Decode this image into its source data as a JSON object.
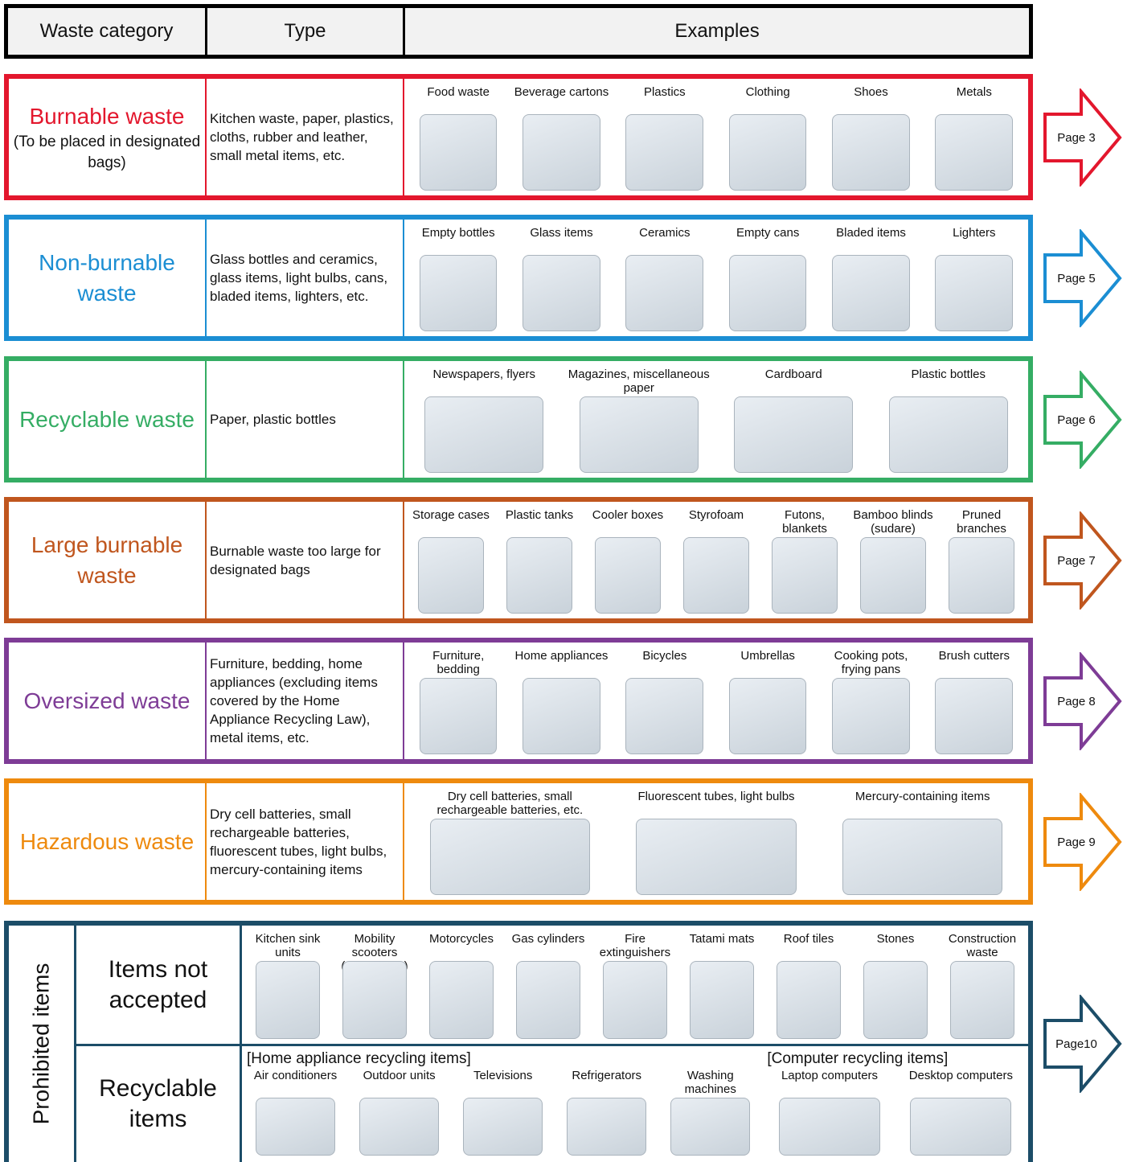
{
  "header": {
    "columns": [
      "Waste category",
      "Type",
      "Examples"
    ]
  },
  "rows": [
    {
      "category": "Burnable waste",
      "note": "(To be placed in designated bags)",
      "type": "Kitchen waste, paper, plastics, cloths, rubber and leather, small metal items, etc.",
      "examples": [
        "Food waste",
        "Beverage cartons",
        "Plastics",
        "Clothing",
        "Shoes",
        "Metals"
      ],
      "page": "Page 3",
      "color": "#e3172d"
    },
    {
      "category": "Non-burnable waste",
      "type": "Glass bottles and ceramics, glass items, light bulbs, cans, bladed items, lighters, etc.",
      "examples": [
        "Empty bottles",
        "Glass items",
        "Ceramics",
        "Empty cans",
        "Bladed items",
        "Lighters"
      ],
      "page": "Page 5",
      "color": "#1b8ed3"
    },
    {
      "category": "Recyclable waste",
      "type": "Paper, plastic bottles",
      "examples": [
        "Newspapers, flyers",
        "Magazines, miscellaneous paper",
        "Cardboard",
        "Plastic bottles"
      ],
      "page": "Page 6",
      "color": "#35ad64"
    },
    {
      "category": "Large burnable waste",
      "type": "Burnable waste too large for designated bags",
      "examples": [
        "Storage cases",
        "Plastic tanks",
        "Cooler boxes",
        "Styrofoam",
        "Futons, blankets",
        "Bamboo blinds (sudare)",
        "Pruned branches"
      ],
      "page": "Page 7",
      "color": "#c0561e"
    },
    {
      "category": "Oversized waste",
      "type": "Furniture, bedding, home appliances (excluding items covered by the Home Appliance Recycling Law), metal items, etc.",
      "examples": [
        "Furniture, bedding",
        "Home appliances",
        "Bicycles",
        "Umbrellas",
        "Cooking pots, frying pans",
        "Brush cutters"
      ],
      "page": "Page 8",
      "color": "#7e3c96"
    },
    {
      "category": "Hazardous waste",
      "type": "Dry cell batteries, small rechargeable batteries, fluorescent tubes, light bulbs, mercury-containing items",
      "examples": [
        "Dry cell batteries, small rechargeable batteries, etc.",
        "Fluorescent tubes, light bulbs",
        "Mercury-containing items"
      ],
      "page": "Page 9",
      "color": "#ee8a0e"
    }
  ],
  "prohibited": {
    "label": "Prohibited items",
    "page": "Page10",
    "color": "#1c4d68",
    "not_accepted": {
      "label": "Items not accepted",
      "examples": [
        "Kitchen sink units",
        "Mobility scooters (senior cars)",
        "Motorcycles",
        "Gas cylinders",
        "Fire extinguishers",
        "Tatami mats",
        "Roof tiles",
        "Stones",
        "Construction waste"
      ]
    },
    "recyclable": {
      "label": "Recyclable items",
      "groups": [
        {
          "heading": "[Home appliance recycling items]",
          "items": [
            "Air conditioners",
            "Outdoor units",
            "Televisions",
            "Refrigerators",
            "Washing machines"
          ]
        },
        {
          "heading": "[Computer recycling items]",
          "items": [
            "Laptop computers",
            "Desktop computers"
          ]
        }
      ]
    }
  }
}
